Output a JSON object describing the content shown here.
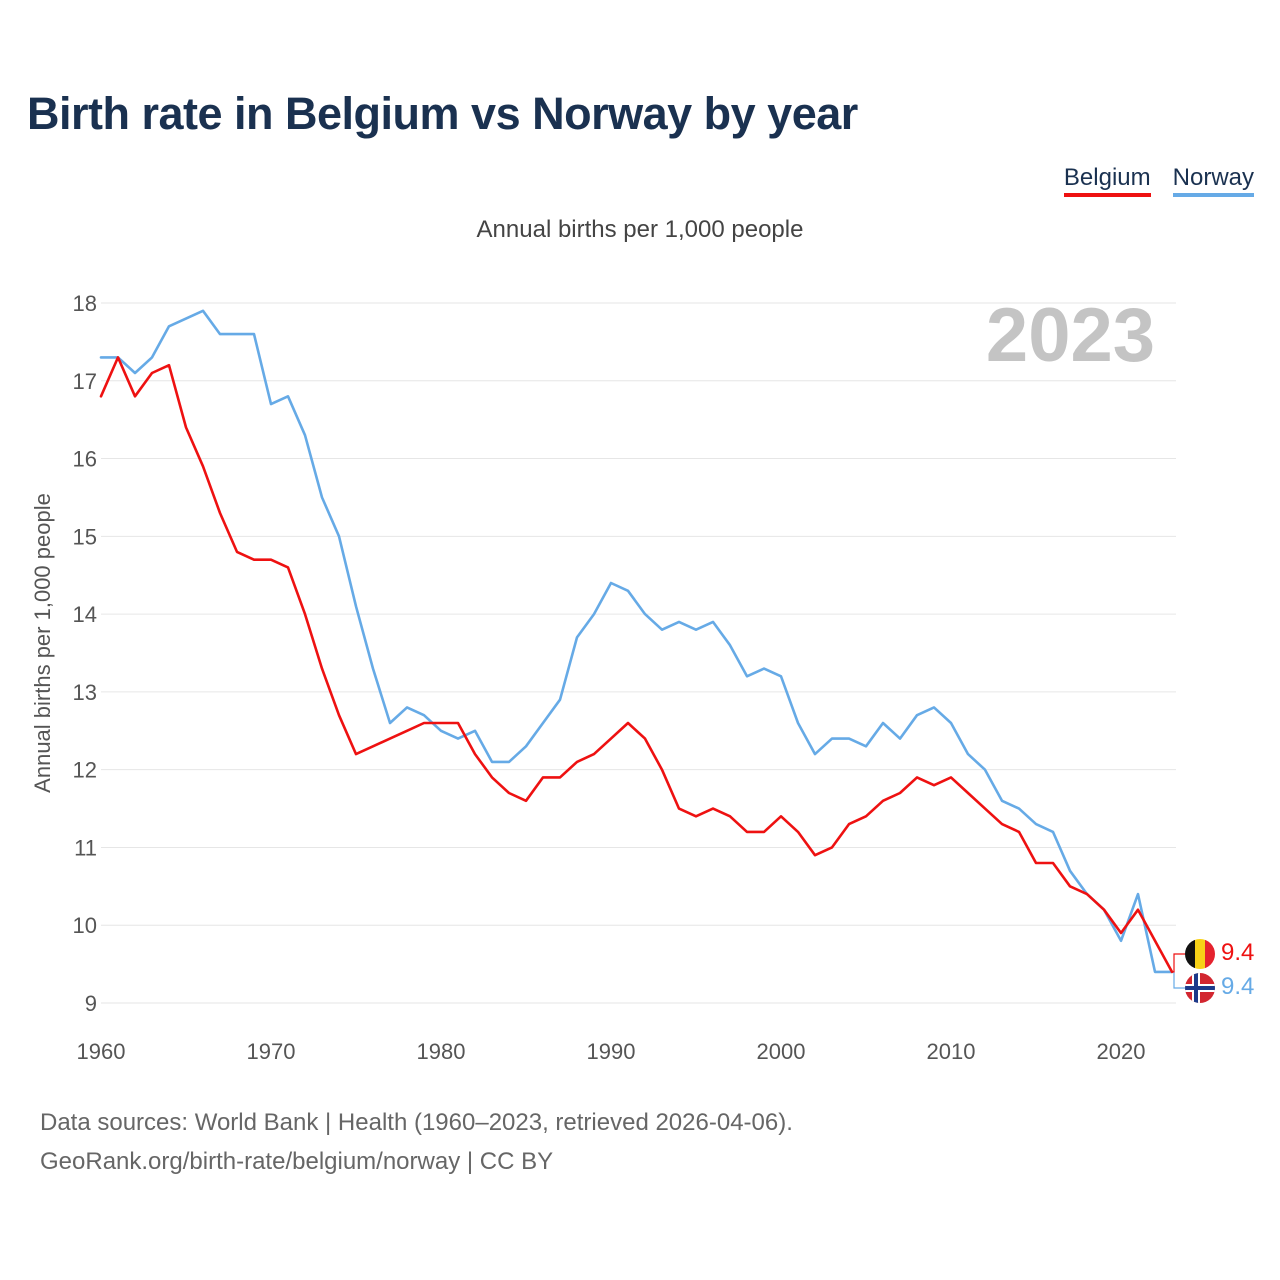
{
  "title": "Birth rate in Belgium vs Norway by year",
  "subtitle": "Annual births per 1,000 people",
  "legend": [
    {
      "label": "Belgium",
      "color": "#ee1111"
    },
    {
      "label": "Norway",
      "color": "#66aae6"
    }
  ],
  "footer": {
    "line1": "Data sources: World Bank | Health (1960–2023, retrieved 2026-04-06).",
    "line2": "GeoRank.org/birth-rate/belgium/norway | CC BY"
  },
  "chart_data": {
    "type": "line",
    "title": "Birth rate in Belgium vs Norway by year",
    "subtitle": "Annual births per 1,000 people",
    "ylabel": "Annual births per 1,000 people",
    "xlabel": "",
    "year_label": "2023",
    "xlim": [
      1960,
      2023
    ],
    "ylim": [
      9,
      18
    ],
    "xticks": [
      1960,
      1970,
      1980,
      1990,
      2000,
      2010,
      2020
    ],
    "yticks": [
      9,
      10,
      11,
      12,
      13,
      14,
      15,
      16,
      17,
      18
    ],
    "grid": true,
    "x": [
      1960,
      1961,
      1962,
      1963,
      1964,
      1965,
      1966,
      1967,
      1968,
      1969,
      1970,
      1971,
      1972,
      1973,
      1974,
      1975,
      1976,
      1977,
      1978,
      1979,
      1980,
      1981,
      1982,
      1983,
      1984,
      1985,
      1986,
      1987,
      1988,
      1989,
      1990,
      1991,
      1992,
      1993,
      1994,
      1995,
      1996,
      1997,
      1998,
      1999,
      2000,
      2001,
      2002,
      2003,
      2004,
      2005,
      2006,
      2007,
      2008,
      2009,
      2010,
      2011,
      2012,
      2013,
      2014,
      2015,
      2016,
      2017,
      2018,
      2019,
      2020,
      2021,
      2022,
      2023
    ],
    "series": [
      {
        "name": "Belgium",
        "color": "#ee1111",
        "end_label": "9.4",
        "flag": "belgium-flag",
        "values": [
          16.8,
          17.3,
          16.8,
          17.1,
          17.2,
          16.4,
          15.9,
          15.3,
          14.8,
          14.7,
          14.7,
          14.6,
          14.0,
          13.3,
          12.7,
          12.2,
          12.3,
          12.4,
          12.5,
          12.6,
          12.6,
          12.6,
          12.2,
          11.9,
          11.7,
          11.6,
          11.9,
          11.9,
          12.1,
          12.2,
          12.4,
          12.6,
          12.4,
          12.0,
          11.5,
          11.4,
          11.5,
          11.4,
          11.2,
          11.2,
          11.4,
          11.2,
          10.9,
          11.0,
          11.3,
          11.4,
          11.6,
          11.7,
          11.9,
          11.8,
          11.9,
          11.7,
          11.5,
          11.3,
          11.2,
          10.8,
          10.8,
          10.5,
          10.4,
          10.2,
          9.9,
          10.2,
          9.8,
          9.4
        ]
      },
      {
        "name": "Norway",
        "color": "#66aae6",
        "end_label": "9.4",
        "flag": "norway-flag",
        "values": [
          17.3,
          17.3,
          17.1,
          17.3,
          17.7,
          17.8,
          17.9,
          17.6,
          17.6,
          17.6,
          16.7,
          16.8,
          16.3,
          15.5,
          15.0,
          14.1,
          13.3,
          12.6,
          12.8,
          12.7,
          12.5,
          12.4,
          12.5,
          12.1,
          12.1,
          12.3,
          12.6,
          12.9,
          13.7,
          14.0,
          14.4,
          14.3,
          14.0,
          13.8,
          13.9,
          13.8,
          13.9,
          13.6,
          13.2,
          13.3,
          13.2,
          12.6,
          12.2,
          12.4,
          12.4,
          12.3,
          12.6,
          12.4,
          12.7,
          12.8,
          12.6,
          12.2,
          12.0,
          11.6,
          11.5,
          11.3,
          11.2,
          10.7,
          10.4,
          10.2,
          9.8,
          10.4,
          9.4,
          9.4
        ]
      }
    ]
  }
}
